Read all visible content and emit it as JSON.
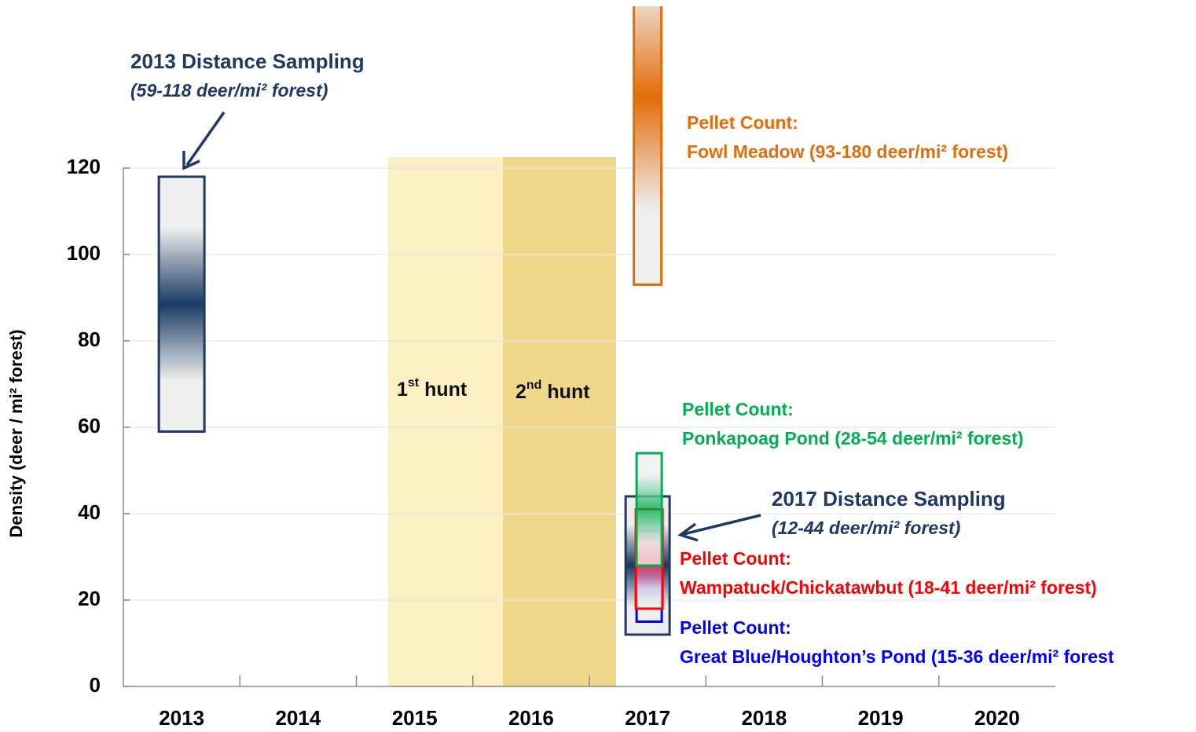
{
  "chart_data": {
    "type": "range",
    "y_label": "Density (deer / mi² forest)",
    "categories": [
      "2013",
      "2014",
      "2015",
      "2016",
      "2017",
      "2018",
      "2019",
      "2020"
    ],
    "ylim": [
      0,
      120
    ],
    "yticks": [
      0,
      20,
      40,
      60,
      80,
      100,
      120
    ],
    "grid": true,
    "shaded_periods": [
      {
        "category": "2015",
        "text": "1",
        "sup": "st",
        "rest": " hunt",
        "color": "#fcefc4"
      },
      {
        "category": "2016",
        "text": "2",
        "sup": "nd",
        "rest": " hunt",
        "color": "#f0d78c"
      }
    ],
    "series": [
      {
        "name": "2013 Distance  Sampling",
        "note": "(59-118 deer/mi² forest)",
        "category": "2013",
        "low": 59,
        "high": 118,
        "color": "#1a3a63"
      },
      {
        "name": "Pellet Count:",
        "note": "Fowl Meadow (93-180 deer/mi² forest)",
        "category": "2017",
        "low": 93,
        "high": 180,
        "color": "#e46c0a"
      },
      {
        "name": "2017 Distance  Sampling",
        "note": "(12-44 deer/mi² forest)",
        "category": "2017",
        "low": 12,
        "high": 44,
        "color": "#1a3a63"
      },
      {
        "name": "Pellet Count:",
        "note": "Great Blue/Houghton’s Pond (15-36 deer/mi² forest",
        "category": "2017",
        "low": 15,
        "high": 36,
        "color": "#0000ff"
      },
      {
        "name": "Pellet Count:",
        "note": "Wampatuck/Chickatawbut (18-41 deer/mi² forest)",
        "category": "2017",
        "low": 18,
        "high": 41,
        "color": "#ff0000"
      },
      {
        "name": "Pellet Count:",
        "note": "Ponkapoag Pond (28-54 deer/mi² forest)",
        "category": "2017",
        "low": 28,
        "high": 54,
        "color": "#00b050"
      }
    ]
  }
}
